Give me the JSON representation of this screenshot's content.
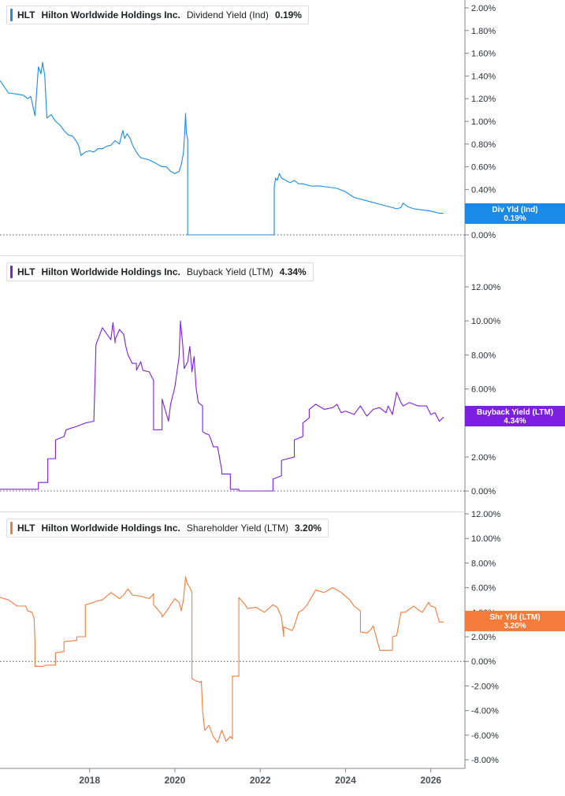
{
  "colors": {
    "panel1": "#1a8ae6",
    "panel2": "#7d1fe0",
    "panel3": "#f47b3a",
    "axis": "#7f838c",
    "divider": "#d4d7de"
  },
  "x_axis": {
    "range": [
      2015.9,
      2026.8
    ],
    "ticks": [
      2018,
      2020,
      2022,
      2024,
      2026
    ],
    "tick_labels": [
      "2018",
      "2020",
      "2022",
      "2024",
      "2026"
    ]
  },
  "chart_data": [
    {
      "type": "line",
      "ticker": "HLT",
      "company": "Hilton Worldwide Holdings Inc.",
      "metric": "Dividend Yield (Ind)",
      "current_value": "0.19%",
      "badge_label": "Div Yld (Ind)",
      "badge_value": "0.19%",
      "ylim": [
        -0.01,
        2.04
      ],
      "yticks": [
        0,
        0.2,
        0.4,
        0.6,
        0.8,
        1.0,
        1.2,
        1.4,
        1.6,
        1.8,
        2.0
      ],
      "ytick_labels": [
        "0.00%",
        "",
        "0.40%",
        "0.60%",
        "0.80%",
        "1.00%",
        "1.20%",
        "1.40%",
        "1.60%",
        "1.80%",
        "2.00%"
      ],
      "series": [
        {
          "x": [
            2015.9,
            2016.1,
            2016.3,
            2016.45,
            2016.55,
            2016.62,
            2016.72,
            2016.8,
            2016.86,
            2016.9,
            2016.95,
            2017.0,
            2017.1,
            2017.2,
            2017.3,
            2017.4,
            2017.5,
            2017.6,
            2017.7,
            2017.75,
            2017.8,
            2017.9,
            2018.0,
            2018.1,
            2018.2,
            2018.3,
            2018.4,
            2018.5,
            2018.6,
            2018.7,
            2018.78,
            2018.82,
            2018.88,
            2018.95,
            2019.0,
            2019.05,
            2019.1,
            2019.15,
            2019.2,
            2019.3,
            2019.4,
            2019.5,
            2019.6,
            2019.7,
            2019.8,
            2019.9,
            2020.0,
            2020.1,
            2020.15,
            2020.2,
            2020.23,
            2020.25,
            2020.27,
            2020.28,
            2020.3,
            2020.3,
            2022.33,
            2022.33,
            2022.36,
            2022.4,
            2022.45,
            2022.5,
            2022.6,
            2022.7,
            2022.8,
            2022.9,
            2023.0,
            2023.2,
            2023.4,
            2023.6,
            2023.8,
            2024.0,
            2024.2,
            2024.4,
            2024.6,
            2024.8,
            2025.0,
            2025.2,
            2025.3,
            2025.35,
            2025.45,
            2025.6,
            2025.8,
            2026.0,
            2026.2,
            2026.3
          ],
          "y": [
            1.36,
            1.25,
            1.24,
            1.23,
            1.2,
            1.22,
            1.05,
            1.48,
            1.42,
            1.52,
            1.4,
            1.03,
            1.06,
            1.0,
            0.97,
            0.92,
            0.88,
            0.87,
            0.82,
            0.78,
            0.7,
            0.73,
            0.74,
            0.73,
            0.76,
            0.76,
            0.78,
            0.79,
            0.83,
            0.8,
            0.92,
            0.85,
            0.89,
            0.85,
            0.8,
            0.76,
            0.73,
            0.7,
            0.68,
            0.67,
            0.66,
            0.64,
            0.62,
            0.6,
            0.6,
            0.56,
            0.54,
            0.56,
            0.62,
            0.72,
            0.9,
            1.07,
            0.9,
            0.88,
            0.84,
            0.0,
            0.0,
            0.42,
            0.5,
            0.48,
            0.54,
            0.5,
            0.48,
            0.46,
            0.48,
            0.45,
            0.45,
            0.43,
            0.43,
            0.42,
            0.41,
            0.38,
            0.33,
            0.31,
            0.29,
            0.27,
            0.25,
            0.23,
            0.24,
            0.28,
            0.25,
            0.23,
            0.22,
            0.21,
            0.19,
            0.19
          ]
        }
      ]
    },
    {
      "type": "line",
      "ticker": "HLT",
      "company": "Hilton Worldwide Holdings Inc.",
      "metric": "Buyback Yield (LTM)",
      "current_value": "4.34%",
      "badge_label": "Buyback Yield (LTM)",
      "badge_value": "4.34%",
      "ylim": [
        -0.2,
        12.8
      ],
      "yticks": [
        0,
        2,
        4,
        6,
        8,
        10,
        12
      ],
      "ytick_labels": [
        "0.00%",
        "2.00%",
        "",
        "6.00%",
        "8.00%",
        "10.00%",
        "12.00%"
      ],
      "series": [
        {
          "x": [
            2015.9,
            2016.8,
            2016.8,
            2017.02,
            2017.02,
            2017.2,
            2017.2,
            2017.4,
            2017.45,
            2017.45,
            2017.7,
            2017.7,
            2017.9,
            2017.9,
            2018.1,
            2018.15,
            2018.3,
            2018.5,
            2018.55,
            2018.6,
            2018.6,
            2018.7,
            2018.8,
            2018.85,
            2018.9,
            2019.0,
            2019.1,
            2019.1,
            2019.2,
            2019.25,
            2019.4,
            2019.5,
            2019.5,
            2019.7,
            2019.7,
            2019.85,
            2019.9,
            2020.0,
            2020.1,
            2020.13,
            2020.18,
            2020.22,
            2020.3,
            2020.35,
            2020.4,
            2020.45,
            2020.5,
            2020.55,
            2020.6,
            2020.65,
            2020.65,
            2020.7,
            2020.8,
            2020.85,
            2020.9,
            2021.0,
            2021.1,
            2021.1,
            2021.3,
            2021.3,
            2021.5,
            2021.5,
            2022.3,
            2022.3,
            2022.5,
            2022.5,
            2022.8,
            2022.8,
            2023.0,
            2023.0,
            2023.15,
            2023.15,
            2023.3,
            2023.5,
            2023.7,
            2023.8,
            2023.9,
            2024.0,
            2024.1,
            2024.2,
            2024.35,
            2024.5,
            2024.65,
            2024.8,
            2024.95,
            2025.0,
            2025.1,
            2025.2,
            2025.3,
            2025.35,
            2025.5,
            2025.7,
            2025.9,
            2026.0,
            2026.1,
            2026.2,
            2026.3
          ],
          "y": [
            0.1,
            0.1,
            0.5,
            0.5,
            1.9,
            1.9,
            3.0,
            3.2,
            3.6,
            3.6,
            3.8,
            3.8,
            4.0,
            4.0,
            4.1,
            8.6,
            9.6,
            8.9,
            9.9,
            8.7,
            8.9,
            9.5,
            9.2,
            8.5,
            8.0,
            7.5,
            7.5,
            7.1,
            7.6,
            7.1,
            7.0,
            6.5,
            3.6,
            3.6,
            5.4,
            4.1,
            5.1,
            6.1,
            7.9,
            10.0,
            8.7,
            7.2,
            7.6,
            8.5,
            7.0,
            7.9,
            6.0,
            5.2,
            5.1,
            5.0,
            3.5,
            3.4,
            3.3,
            3.0,
            2.6,
            2.6,
            1.2,
            1.0,
            1.0,
            0.1,
            0.1,
            0.0,
            0.0,
            0.7,
            0.9,
            1.8,
            2.0,
            3.0,
            3.2,
            4.0,
            4.3,
            4.8,
            5.1,
            4.8,
            4.9,
            5.1,
            4.6,
            4.7,
            4.6,
            4.5,
            5.0,
            4.4,
            4.8,
            4.9,
            4.6,
            5.0,
            4.5,
            5.8,
            5.2,
            5.0,
            5.2,
            5.0,
            5.0,
            4.5,
            4.6,
            4.1,
            4.34
          ]
        }
      ]
    },
    {
      "type": "line",
      "ticker": "HLT",
      "company": "Hilton Worldwide Holdings Inc.",
      "metric": "Shareholder Yield (LTM)",
      "current_value": "3.20%",
      "badge_label": "Shr Yld (LTM)",
      "badge_value": "3.20%",
      "ylim": [
        -8.4,
        12.1
      ],
      "yticks": [
        -8,
        -6,
        -4,
        -2,
        0,
        2,
        4,
        6,
        8,
        10,
        12
      ],
      "ytick_labels": [
        "-8.00%",
        "-6.00%",
        "-4.00%",
        "-2.00%",
        "0.00%",
        "2.00%",
        "4.00%",
        "6.00%",
        "8.00%",
        "10.00%",
        "12.00%"
      ],
      "series": [
        {
          "x": [
            2015.9,
            2016.1,
            2016.3,
            2016.5,
            2016.55,
            2016.65,
            2016.7,
            2016.72,
            2016.72,
            2016.9,
            2017.0,
            2017.2,
            2017.2,
            2017.4,
            2017.4,
            2017.7,
            2017.7,
            2017.9,
            2017.9,
            2018.1,
            2018.15,
            2018.3,
            2018.5,
            2018.7,
            2018.8,
            2018.9,
            2019.0,
            2019.2,
            2019.4,
            2019.5,
            2019.5,
            2019.7,
            2019.7,
            2019.85,
            2019.9,
            2020.0,
            2020.1,
            2020.15,
            2020.2,
            2020.25,
            2020.28,
            2020.35,
            2020.4,
            2020.4,
            2020.5,
            2020.6,
            2020.62,
            2020.65,
            2020.7,
            2020.8,
            2020.9,
            2021.0,
            2021.1,
            2021.2,
            2021.3,
            2021.35,
            2021.35,
            2021.5,
            2021.5,
            2021.65,
            2021.7,
            2021.9,
            2022.1,
            2022.3,
            2022.4,
            2022.5,
            2022.55,
            2022.55,
            2022.75,
            2022.8,
            2022.9,
            2023.0,
            2023.1,
            2023.3,
            2023.5,
            2023.7,
            2023.9,
            2024.1,
            2024.2,
            2024.35,
            2024.35,
            2024.5,
            2024.6,
            2024.65,
            2024.75,
            2024.8,
            2024.8,
            2025.1,
            2025.1,
            2025.2,
            2025.3,
            2025.4,
            2025.6,
            2025.7,
            2025.8,
            2025.95,
            2026.0,
            2026.1,
            2026.2,
            2026.3
          ],
          "y": [
            5.2,
            5.0,
            4.5,
            4.5,
            4.1,
            4.0,
            3.5,
            1.5,
            -0.4,
            -0.4,
            -0.3,
            -0.3,
            0.7,
            0.8,
            1.6,
            1.7,
            2.0,
            2.0,
            4.6,
            4.8,
            4.9,
            5.0,
            5.6,
            5.1,
            5.4,
            5.9,
            5.4,
            5.3,
            5.1,
            5.5,
            4.6,
            3.8,
            3.6,
            4.3,
            4.6,
            5.1,
            4.8,
            4.1,
            5.0,
            6.9,
            6.4,
            6.0,
            5.6,
            -1.4,
            -1.6,
            -1.7,
            -1.6,
            -4.0,
            -5.6,
            -5.2,
            -6.1,
            -6.6,
            -5.6,
            -6.5,
            -6.1,
            -6.3,
            -1.2,
            -1.2,
            5.2,
            4.6,
            4.3,
            4.4,
            4.0,
            4.6,
            4.4,
            3.6,
            2.0,
            2.8,
            2.5,
            2.9,
            4.0,
            4.2,
            4.6,
            5.8,
            5.6,
            6.0,
            5.6,
            5.0,
            4.5,
            4.1,
            2.4,
            2.3,
            2.6,
            2.9,
            1.6,
            1.0,
            0.9,
            0.9,
            2.0,
            2.1,
            4.0,
            4.0,
            4.5,
            4.2,
            4.0,
            4.8,
            4.5,
            4.4,
            3.2,
            3.2
          ]
        }
      ]
    }
  ]
}
